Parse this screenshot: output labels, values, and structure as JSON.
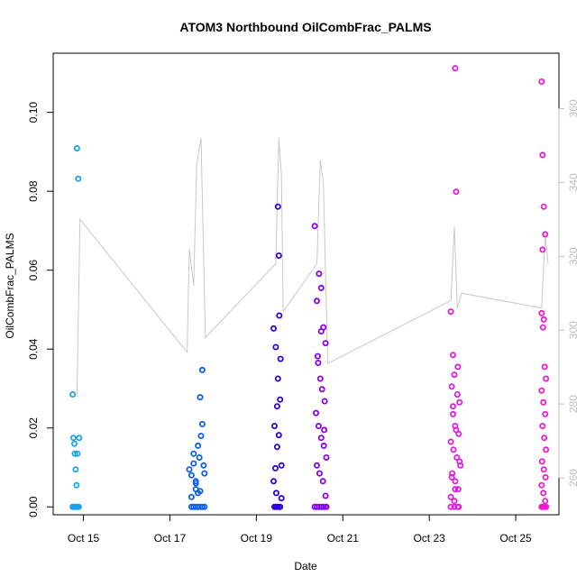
{
  "chart_data": {
    "type": "scatter",
    "title": "ATOM3 Northbound OilCombFrac_PALMS",
    "xlabel": "Date",
    "ylabel": "OilCombFrac_PALMS",
    "x_ticks": [
      "Oct 15",
      "Oct 17",
      "Oct 19",
      "Oct 21",
      "Oct 23",
      "Oct 25"
    ],
    "x_tick_days": [
      15,
      17,
      19,
      21,
      23,
      25
    ],
    "xlim_days": [
      14.3,
      26.0
    ],
    "y_ticks": [
      "0.00",
      "0.02",
      "0.04",
      "0.06",
      "0.08",
      "0.10"
    ],
    "y_tick_values": [
      0.0,
      0.02,
      0.04,
      0.06,
      0.08,
      0.1
    ],
    "ylim": [
      -0.002,
      0.115
    ],
    "y2_ticks": [
      "260",
      "280",
      "300",
      "320",
      "340",
      "360"
    ],
    "y2_tick_values": [
      260,
      280,
      300,
      320,
      340,
      360
    ],
    "y2lim": [
      250,
      375
    ],
    "grid": false,
    "legend": "none",
    "colors": {
      "axis": "#000000",
      "secondary_axis": "#bdbdbd",
      "secondary_line": "#c8c8c8",
      "point_gradient": [
        "#1aa3e8",
        "#0a5fe6",
        "#2e00e0",
        "#8b00f0",
        "#e01ce0",
        "#f01ad2"
      ]
    },
    "secondary_series": {
      "description": "grey trace on right axis",
      "x_days": [
        14.85,
        14.92,
        17.4,
        17.45,
        17.55,
        17.62,
        17.72,
        17.82,
        19.45,
        19.52,
        19.58,
        19.62,
        20.4,
        20.48,
        20.55,
        20.65,
        23.5,
        23.58,
        23.65,
        23.75,
        25.6,
        25.68,
        25.75
      ],
      "y_right": [
        282,
        330,
        294,
        322,
        312,
        345,
        352,
        298,
        318,
        352,
        342,
        305,
        318,
        346,
        340,
        291,
        308,
        328,
        306,
        310,
        306,
        326,
        318
      ]
    },
    "series": [
      {
        "x_days": [
          14.75,
          14.77,
          14.79,
          14.8,
          14.82,
          14.84,
          14.85,
          14.86,
          14.88,
          14.9,
          14.75,
          14.77,
          14.8,
          14.83,
          14.86,
          14.89
        ],
        "y": [
          0.0285,
          0.0175,
          0.016,
          0.0135,
          0.0095,
          0.0055,
          0.0909,
          0.0135,
          0.0832,
          0.0175,
          0.0,
          0.0,
          0.0,
          0.0,
          0.0,
          0.0
        ]
      },
      {
        "x_days": [
          17.45,
          17.5,
          17.55,
          17.6,
          17.65,
          17.7,
          17.75,
          17.8,
          17.5,
          17.6,
          17.7,
          17.75,
          17.78,
          17.55,
          17.65,
          17.72,
          17.6,
          17.68,
          17.5,
          17.55,
          17.6,
          17.65,
          17.7,
          17.75,
          17.8
        ],
        "y": [
          0.0095,
          0.008,
          0.0135,
          0.006,
          0.0155,
          0.004,
          0.0347,
          0.0085,
          0.0025,
          0.0065,
          0.0278,
          0.021,
          0.0105,
          0.011,
          0.0035,
          0.018,
          0.0045,
          0.0125,
          0.0,
          0.0,
          0.0,
          0.0,
          0.0,
          0.0,
          0.0
        ]
      },
      {
        "x_days": [
          19.4,
          19.45,
          19.5,
          19.52,
          19.55,
          19.48,
          19.42,
          19.5,
          19.58,
          19.46,
          19.53,
          19.4,
          19.48,
          19.56,
          19.44,
          19.52,
          19.58,
          19.45,
          19.5,
          19.55,
          19.42,
          19.48,
          19.54
        ],
        "y": [
          0.0452,
          0.0405,
          0.0761,
          0.0637,
          0.0272,
          0.0152,
          0.0205,
          0.0325,
          0.0105,
          0.0035,
          0.0485,
          0.0065,
          0.0255,
          0.0375,
          0.0098,
          0.0182,
          0.0022,
          0.0,
          0.0,
          0.0,
          0.0,
          0.0,
          0.0
        ]
      },
      {
        "x_days": [
          20.35,
          20.4,
          20.45,
          20.5,
          20.55,
          20.6,
          20.42,
          20.48,
          20.52,
          20.58,
          20.38,
          20.44,
          20.5,
          20.56,
          20.62,
          20.4,
          20.46,
          20.54,
          20.6,
          20.43,
          20.5,
          20.57,
          20.35,
          20.45,
          20.55,
          20.62,
          20.4,
          20.5,
          20.6
        ],
        "y": [
          0.0712,
          0.0522,
          0.0591,
          0.0555,
          0.0455,
          0.0415,
          0.0382,
          0.0325,
          0.0298,
          0.0268,
          0.0238,
          0.0205,
          0.0175,
          0.0155,
          0.0125,
          0.0105,
          0.0085,
          0.0065,
          0.0028,
          0.0365,
          0.0445,
          0.0195,
          0.0,
          0.0,
          0.0,
          0.0,
          0.0,
          0.0,
          0.0
        ]
      },
      {
        "x_days": [
          23.5,
          23.55,
          23.6,
          23.62,
          23.58,
          23.52,
          23.65,
          23.7,
          23.55,
          23.6,
          23.68,
          23.5,
          23.56,
          23.64,
          23.72,
          23.53,
          23.6,
          23.67,
          23.5,
          23.58,
          23.66,
          23.55,
          23.62,
          23.7,
          23.52,
          23.6,
          23.68,
          23.5,
          23.58,
          23.66
        ],
        "y": [
          0.0495,
          0.0385,
          0.1112,
          0.0799,
          0.0335,
          0.0305,
          0.0285,
          0.0265,
          0.0235,
          0.0205,
          0.0185,
          0.0165,
          0.0145,
          0.0125,
          0.0105,
          0.0085,
          0.0065,
          0.0045,
          0.0025,
          0.0015,
          0.0355,
          0.0255,
          0.0195,
          0.0115,
          0.0075,
          0.0045,
          0.0,
          0.0,
          0.0,
          0.0
        ]
      },
      {
        "x_days": [
          25.6,
          25.62,
          25.65,
          25.68,
          25.62,
          25.6,
          25.65,
          25.63,
          25.67,
          25.7,
          25.6,
          25.64,
          25.68,
          25.62,
          25.66,
          25.7,
          25.61,
          25.65,
          25.69,
          25.6,
          25.64,
          25.68,
          25.62,
          25.66,
          25.7,
          25.6,
          25.65,
          25.7
        ],
        "y": [
          0.1078,
          0.0892,
          0.0761,
          0.0691,
          0.0652,
          0.0491,
          0.0475,
          0.0455,
          0.0355,
          0.0325,
          0.0295,
          0.0265,
          0.0235,
          0.0205,
          0.0175,
          0.0145,
          0.0115,
          0.0095,
          0.0075,
          0.0055,
          0.0035,
          0.0015,
          0.0,
          0.0,
          0.0,
          0.0,
          0.0,
          0.0
        ]
      }
    ]
  }
}
